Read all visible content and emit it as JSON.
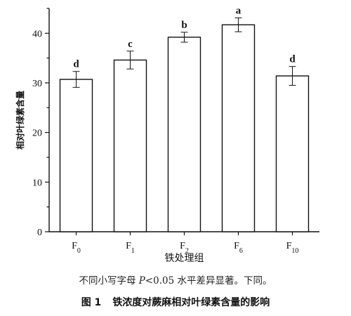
{
  "chart_data": {
    "type": "bar",
    "categories": [
      {
        "base": "F",
        "sub": "0"
      },
      {
        "base": "F",
        "sub": "1"
      },
      {
        "base": "F",
        "sub": "2"
      },
      {
        "base": "F",
        "sub": "6"
      },
      {
        "base": "F",
        "sub": "10"
      }
    ],
    "values": [
      30.7,
      34.6,
      39.2,
      41.7,
      31.4
    ],
    "errors": [
      1.6,
      1.8,
      1.0,
      1.4,
      1.9
    ],
    "significance": [
      "d",
      "c",
      "b",
      "a",
      "d"
    ],
    "xlabel": "铁处理组",
    "ylabel": "相对叶绿素含量",
    "ylim": [
      0,
      45
    ],
    "yticks": [
      0,
      10,
      20,
      30,
      40
    ],
    "grid": false
  },
  "note": {
    "pre": "不同小写字母 ",
    "p_symbol": "P",
    "post": "<0.05 水平差异显著。下同。"
  },
  "caption": {
    "fig_num": "图 1",
    "text": "铁浓度对蕨麻相对叶绿素含量的影响"
  }
}
